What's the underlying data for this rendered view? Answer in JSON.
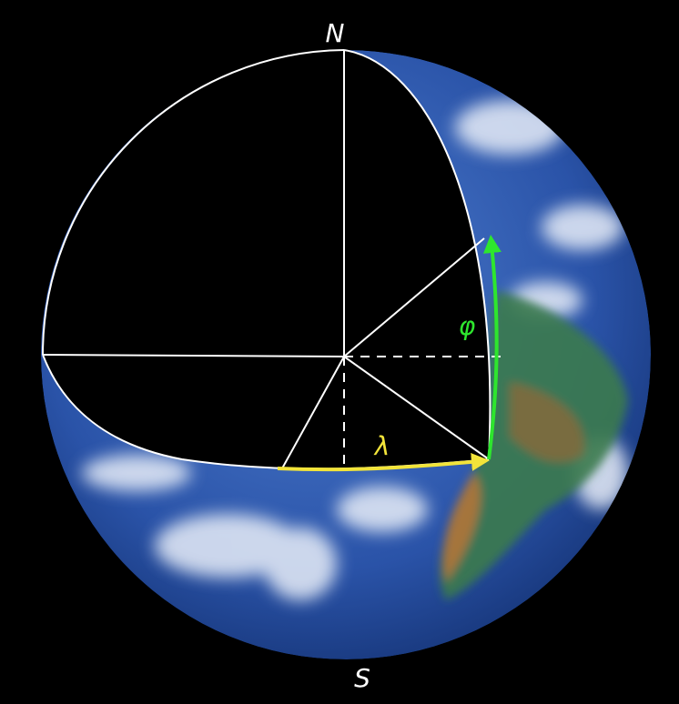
{
  "labels": {
    "north": "N",
    "south": "S",
    "latitude": "φ",
    "longitude": "λ"
  }
}
